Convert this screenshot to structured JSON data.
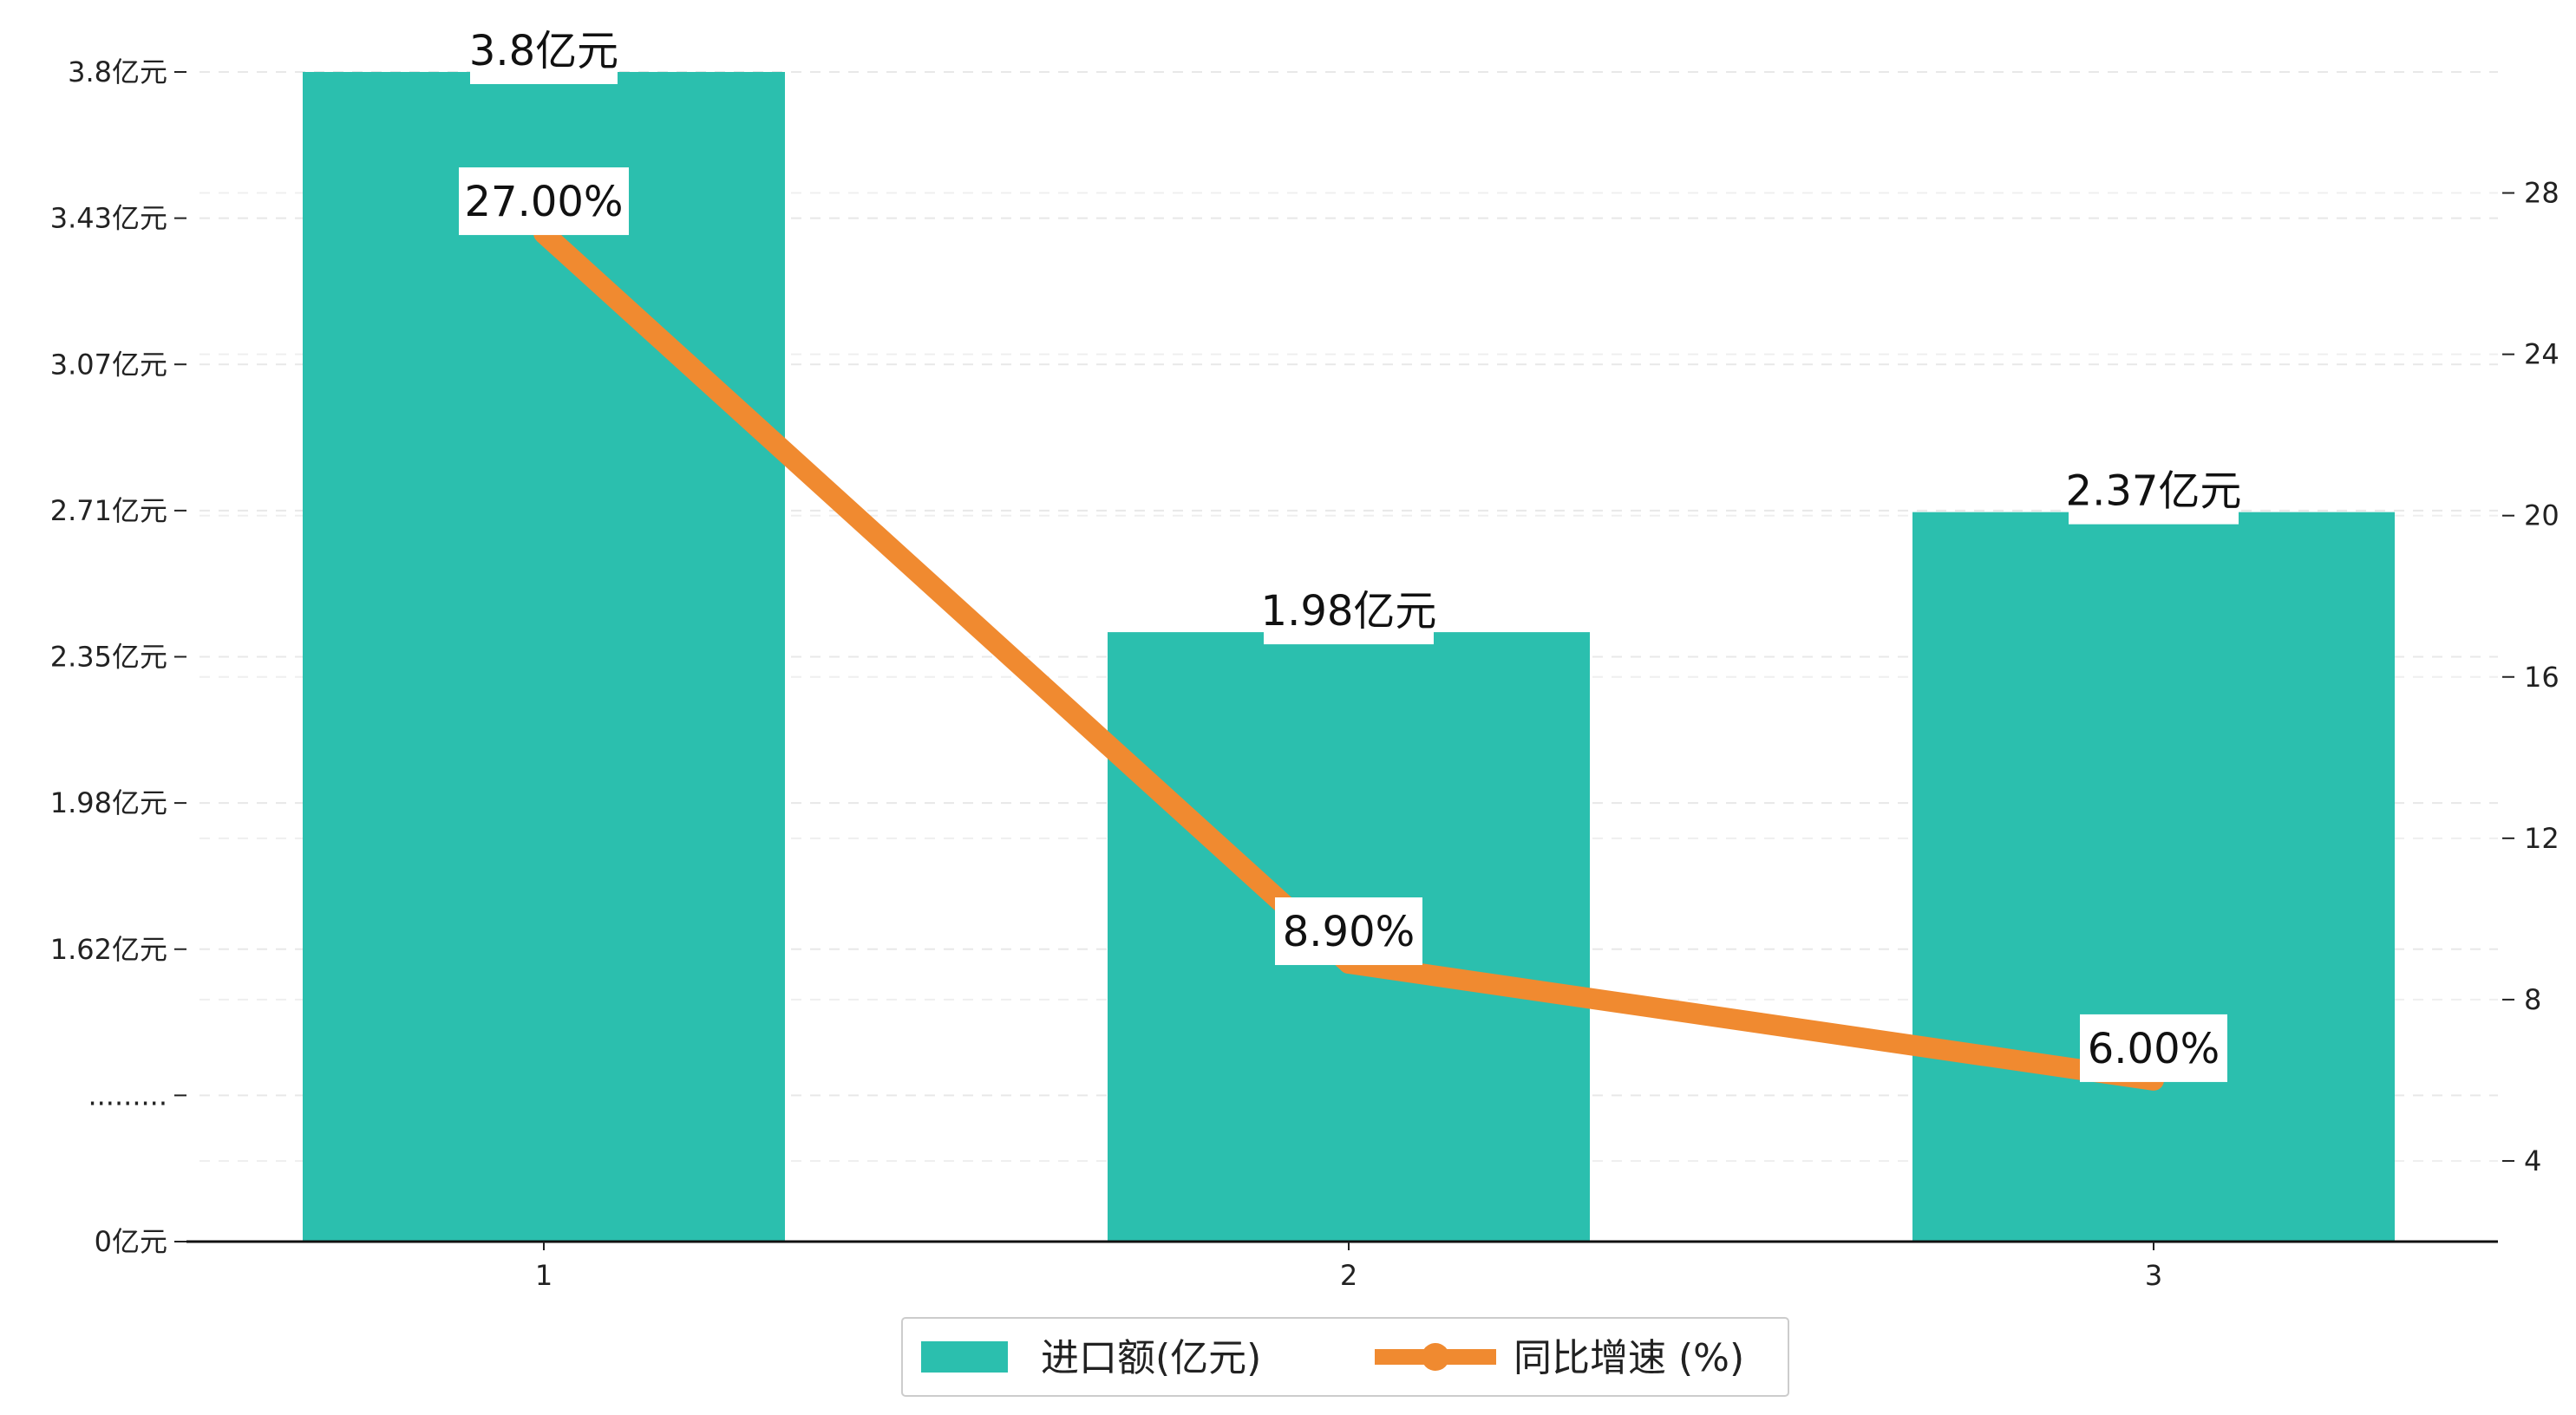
{
  "chart_data": {
    "type": "bar",
    "categories": [
      "1",
      "2",
      "3"
    ],
    "series": [
      {
        "name": "进口额(亿元)",
        "type": "bar",
        "axis": "left",
        "values": [
          3.8,
          1.98,
          2.37
        ],
        "data_labels": [
          "3.8亿元",
          "1.98亿元",
          "2.37亿元"
        ],
        "color": "#2bbfae"
      },
      {
        "name": "同比增速 (%)",
        "type": "line",
        "axis": "right",
        "values": [
          27.0,
          8.9,
          6.0
        ],
        "data_labels": [
          "27.00%",
          "8.90%",
          "6.00%"
        ],
        "color": "#f08a30"
      }
    ],
    "left_axis": {
      "ylim": [
        0,
        3.8
      ],
      "ticks": [
        {
          "value": 0,
          "label": "0亿元"
        },
        {
          "value": 0.475,
          "label": "........."
        },
        {
          "value": 0.95,
          "label": "1.62亿元"
        },
        {
          "value": 1.425,
          "label": "1.98亿元"
        },
        {
          "value": 1.9,
          "label": "2.35亿元"
        },
        {
          "value": 2.375,
          "label": "2.71亿元"
        },
        {
          "value": 2.85,
          "label": "3.07亿元"
        },
        {
          "value": 3.325,
          "label": "3.43亿元"
        },
        {
          "value": 3.8,
          "label": "3.8亿元"
        }
      ]
    },
    "right_axis": {
      "ylim": [
        2,
        31
      ],
      "ticks": [
        4,
        8,
        12,
        16,
        20,
        24,
        28
      ]
    },
    "grid": "horizontal-dashed",
    "legend_position": "bottom-center"
  }
}
